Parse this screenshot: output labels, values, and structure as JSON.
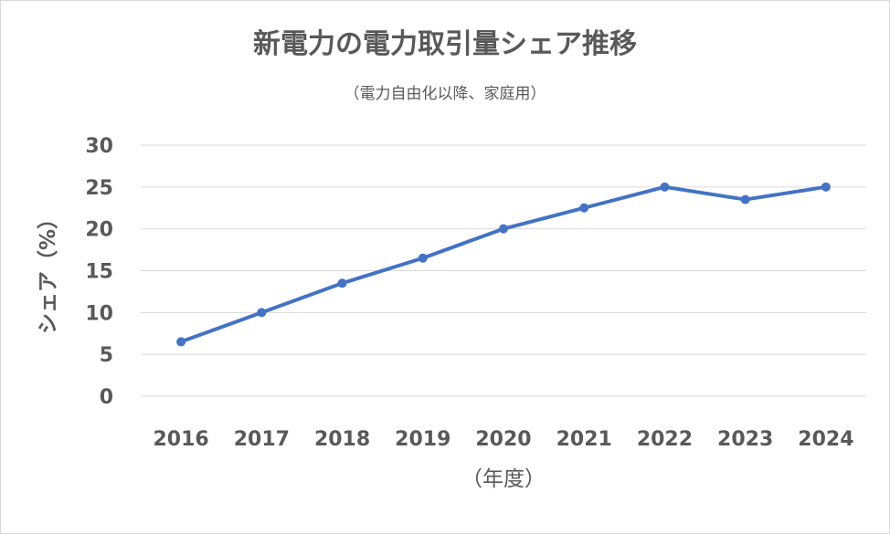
{
  "chart_data": {
    "type": "line",
    "title": "新電力の電力取引量シェア推移",
    "subtitle": "（電力自由化以降、家庭用）",
    "xlabel": "（年度）",
    "ylabel": "シェア（%）",
    "categories": [
      "2016",
      "2017",
      "2018",
      "2019",
      "2020",
      "2021",
      "2022",
      "2023",
      "2024"
    ],
    "series": [
      {
        "values": [
          6.5,
          10,
          13.5,
          16.5,
          20,
          22.5,
          25,
          23.5,
          25
        ],
        "color": "#4472c4"
      }
    ],
    "ylim": [
      0,
      30
    ],
    "yticks": [
      "0",
      "5",
      "10",
      "15",
      "20",
      "25",
      "30"
    ],
    "grid": true,
    "gridColor": "#d9d9d9",
    "legend": "none"
  }
}
